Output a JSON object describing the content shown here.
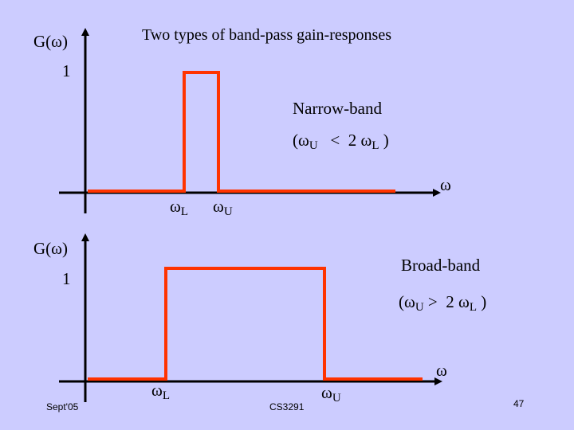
{
  "title": "Two types of band-pass gain-responses",
  "omega": "ω",
  "gain_label": "G(ω)",
  "one": "1",
  "sub_L": "L",
  "sub_U": "U",
  "narrow": {
    "name": "Narrow-band",
    "cond_open": "(ω",
    "cond_mid": "   <  2 ω",
    "cond_close": " )"
  },
  "broad": {
    "name": "Broad-band",
    "cond_open": "(ω",
    "cond_mid": " >  2 ω",
    "cond_close": " )"
  },
  "footer": {
    "left": "Sept'05",
    "center": "CS3291",
    "page": "47"
  },
  "colors": {
    "background": "#ccccff",
    "response": "#ff3300",
    "axis": "#000000"
  }
}
